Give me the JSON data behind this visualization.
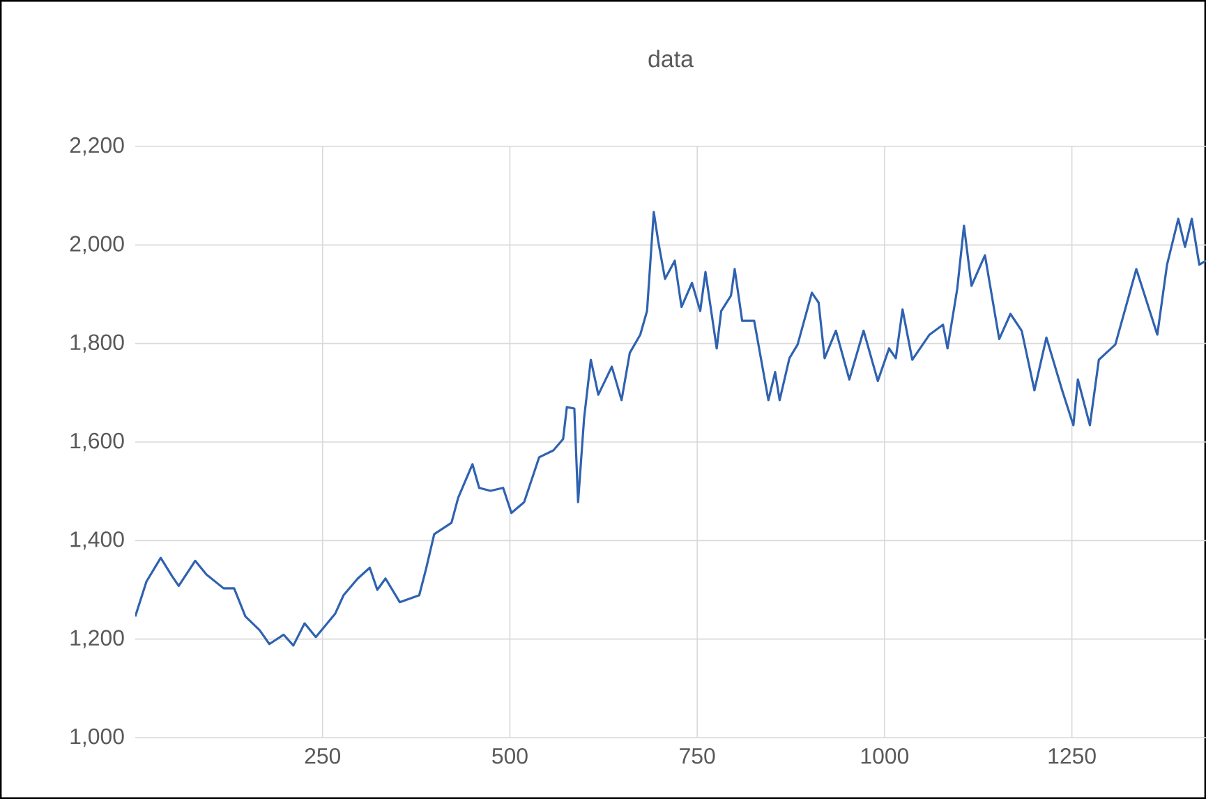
{
  "chart_data": {
    "type": "line",
    "title": "data",
    "x": [
      0,
      15,
      34,
      49,
      58,
      80,
      95,
      118,
      132,
      147,
      166,
      179,
      198,
      211,
      226,
      241,
      267,
      278,
      297,
      313,
      323,
      334,
      353,
      379,
      388,
      399,
      422,
      431,
      450,
      459,
      474,
      491,
      502,
      519,
      539,
      558,
      571,
      576,
      586,
      591,
      599,
      608,
      618,
      636,
      649,
      660,
      674,
      683,
      692,
      698,
      707,
      720,
      729,
      743,
      754,
      761,
      776,
      782,
      795,
      800,
      810,
      826,
      845,
      854,
      860,
      873,
      884,
      903,
      912,
      920,
      935,
      953,
      972,
      991,
      1006,
      1015,
      1024,
      1037,
      1060,
      1078,
      1084,
      1097,
      1106,
      1116,
      1134,
      1153,
      1168,
      1183,
      1200,
      1216,
      1237,
      1252,
      1258,
      1274,
      1286,
      1308,
      1336,
      1364,
      1377,
      1392,
      1401,
      1410,
      1420,
      1429
    ],
    "series": [
      {
        "color": "#2f62b0",
        "values": [
          1246,
          1317,
          1365,
          1328,
          1308,
          1359,
          1331,
          1303,
          1303,
          1246,
          1218,
          1190,
          1209,
          1187,
          1232,
          1204,
          1252,
          1289,
          1323,
          1345,
          1300,
          1323,
          1275,
          1289,
          1342,
          1413,
          1436,
          1487,
          1555,
          1507,
          1501,
          1507,
          1456,
          1478,
          1569,
          1583,
          1606,
          1671,
          1668,
          1478,
          1648,
          1767,
          1696,
          1753,
          1685,
          1781,
          1818,
          1866,
          2067,
          2007,
          1931,
          1968,
          1874,
          1923,
          1866,
          1945,
          1790,
          1866,
          1897,
          1951,
          1846,
          1846,
          1685,
          1742,
          1685,
          1770,
          1798,
          1903,
          1883,
          1770,
          1826,
          1727,
          1826,
          1724,
          1790,
          1770,
          1869,
          1767,
          1818,
          1838,
          1790,
          1911,
          2039,
          1917,
          1979,
          1809,
          1860,
          1826,
          1705,
          1812,
          1705,
          1634,
          1727,
          1634,
          1767,
          1798,
          1951,
          1818,
          1960,
          2053,
          1996,
          2053,
          1960,
          1968
        ]
      }
    ],
    "xlim": [
      0,
      1429
    ],
    "xticks": [
      250,
      500,
      750,
      1000,
      1250
    ],
    "ylim": [
      1000,
      2200
    ],
    "yticks": [
      {
        "value": 1000,
        "label": "1,000"
      },
      {
        "value": 1200,
        "label": "1,200"
      },
      {
        "value": 1400,
        "label": "1,400"
      },
      {
        "value": 1600,
        "label": "1,600"
      },
      {
        "value": 1800,
        "label": "1,800"
      },
      {
        "value": 2000,
        "label": "2,000"
      },
      {
        "value": 2200,
        "label": "2,200"
      }
    ],
    "grid": true
  }
}
